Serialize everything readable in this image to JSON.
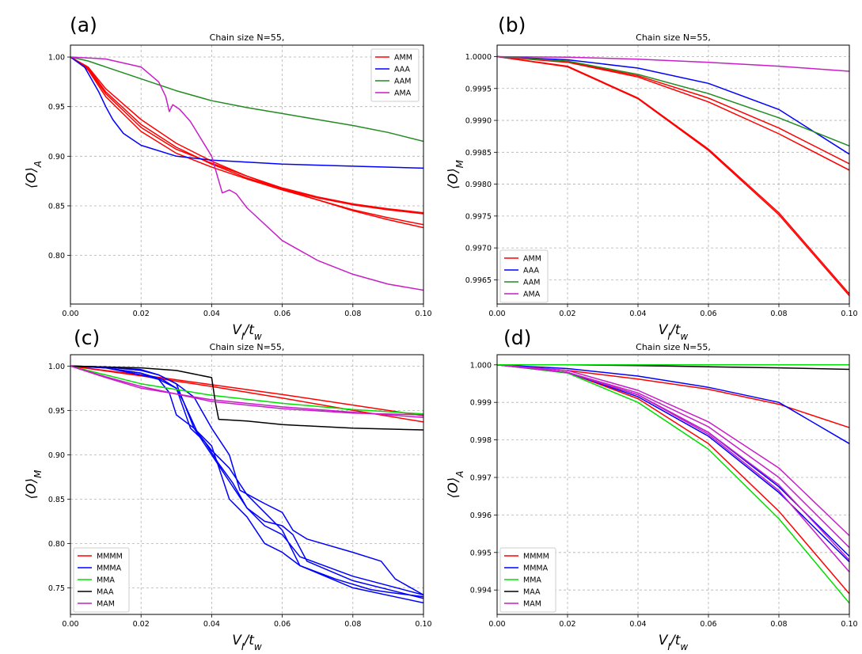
{
  "chart_data": [
    {
      "panel": "(a)",
      "type": "line",
      "title": "Chain size N=55,",
      "xlabel": "V_I/t_w",
      "ylabel": "⟨O⟩_A",
      "xlim": [
        0,
        0.1
      ],
      "ylim": [
        0.751,
        1.012
      ],
      "xticks": [
        "0.00",
        "0.02",
        "0.04",
        "0.06",
        "0.08",
        "0.10"
      ],
      "yticks": [
        "0.80",
        "0.85",
        "0.90",
        "0.95",
        "1.00"
      ],
      "legend_position": "top-right",
      "legend": [
        "AMM",
        "AAA",
        "AAM",
        "AMA"
      ],
      "series": [
        {
          "name": "AMM",
          "color": "#ff0000",
          "x": [
            0,
            0.005,
            0.01,
            0.02,
            0.03,
            0.04,
            0.05,
            0.06,
            0.07,
            0.08,
            0.09,
            0.1
          ],
          "y": [
            1.0,
            0.99,
            0.968,
            0.937,
            0.913,
            0.895,
            0.88,
            0.868,
            0.859,
            0.852,
            0.847,
            0.843
          ]
        },
        {
          "name": "AMM",
          "color": "#ff0000",
          "x": [
            0,
            0.005,
            0.01,
            0.02,
            0.03,
            0.04,
            0.05,
            0.06,
            0.07,
            0.08,
            0.09,
            0.1
          ],
          "y": [
            1.0,
            0.989,
            0.965,
            0.932,
            0.909,
            0.892,
            0.878,
            0.867,
            0.858,
            0.851,
            0.846,
            0.842
          ]
        },
        {
          "name": "AMM",
          "color": "#ff0000",
          "x": [
            0,
            0.005,
            0.01,
            0.02,
            0.03,
            0.04,
            0.05,
            0.06,
            0.07,
            0.08,
            0.09,
            0.1
          ],
          "y": [
            1.0,
            0.988,
            0.963,
            0.929,
            0.907,
            0.893,
            0.88,
            0.867,
            0.856,
            0.845,
            0.836,
            0.828
          ]
        },
        {
          "name": "AMM",
          "color": "#ff0000",
          "x": [
            0,
            0.005,
            0.01,
            0.02,
            0.03,
            0.04,
            0.05,
            0.06,
            0.07,
            0.08,
            0.09,
            0.1
          ],
          "y": [
            1.0,
            0.987,
            0.96,
            0.925,
            0.903,
            0.889,
            0.877,
            0.866,
            0.856,
            0.846,
            0.838,
            0.831
          ]
        },
        {
          "name": "AAA",
          "color": "#0000ff",
          "x": [
            0,
            0.004,
            0.008,
            0.01,
            0.012,
            0.015,
            0.02,
            0.03,
            0.04,
            0.06,
            0.08,
            0.1
          ],
          "y": [
            1.0,
            0.99,
            0.965,
            0.95,
            0.937,
            0.923,
            0.911,
            0.9,
            0.896,
            0.892,
            0.89,
            0.888
          ]
        },
        {
          "name": "AAM",
          "color": "#228b22",
          "x": [
            0,
            0.005,
            0.01,
            0.02,
            0.03,
            0.04,
            0.05,
            0.06,
            0.07,
            0.08,
            0.09,
            0.1
          ],
          "y": [
            1.0,
            0.996,
            0.99,
            0.978,
            0.966,
            0.956,
            0.949,
            0.943,
            0.937,
            0.931,
            0.924,
            0.915
          ]
        },
        {
          "name": "AMA",
          "color": "#c71ec7",
          "x": [
            0,
            0.01,
            0.02,
            0.025,
            0.027,
            0.028,
            0.029,
            0.031,
            0.034,
            0.04,
            0.043,
            0.045,
            0.047,
            0.05,
            0.06,
            0.07,
            0.08,
            0.09,
            0.1
          ],
          "y": [
            1.0,
            0.998,
            0.99,
            0.975,
            0.96,
            0.945,
            0.952,
            0.947,
            0.935,
            0.9,
            0.863,
            0.866,
            0.862,
            0.848,
            0.815,
            0.795,
            0.781,
            0.771,
            0.765
          ]
        }
      ]
    },
    {
      "panel": "(b)",
      "type": "line",
      "title": "Chain size N=55,",
      "xlabel": "V_I/t_w",
      "ylabel": "⟨O⟩_M",
      "xlim": [
        0,
        0.1
      ],
      "ylim": [
        0.99612,
        1.00018
      ],
      "xticks": [
        "0.00",
        "0.02",
        "0.04",
        "0.06",
        "0.08",
        "0.10"
      ],
      "yticks": [
        "0.9965",
        "0.9970",
        "0.9975",
        "0.9980",
        "0.9985",
        "0.9990",
        "0.9995",
        "1.0000"
      ],
      "legend_position": "bottom-left",
      "legend": [
        "AMM",
        "AAA",
        "AAM",
        "AMA"
      ],
      "series": [
        {
          "name": "AMM",
          "color": "#ff0000",
          "x": [
            0,
            0.02,
            0.04,
            0.06,
            0.08,
            0.1
          ],
          "y": [
            1.0,
            0.99985,
            0.99935,
            0.99855,
            0.99755,
            0.99628
          ]
        },
        {
          "name": "AMM",
          "color": "#ff0000",
          "x": [
            0,
            0.02,
            0.04,
            0.06,
            0.08,
            0.1
          ],
          "y": [
            1.0,
            0.99984,
            0.99934,
            0.99853,
            0.99752,
            0.99625
          ]
        },
        {
          "name": "AMM",
          "color": "#ff0000",
          "x": [
            0,
            0.02,
            0.04,
            0.06,
            0.08,
            0.1
          ],
          "y": [
            1.0,
            0.99992,
            0.9997,
            0.99935,
            0.99888,
            0.99832
          ]
        },
        {
          "name": "AMM",
          "color": "#ff0000",
          "x": [
            0,
            0.02,
            0.04,
            0.06,
            0.08,
            0.1
          ],
          "y": [
            1.0,
            0.99991,
            0.99968,
            0.99929,
            0.99879,
            0.99822
          ]
        },
        {
          "name": "AAA",
          "color": "#0000ff",
          "x": [
            0,
            0.02,
            0.04,
            0.06,
            0.08,
            0.1
          ],
          "y": [
            1.0,
            0.99995,
            0.99982,
            0.99958,
            0.99917,
            0.99847
          ]
        },
        {
          "name": "AAM",
          "color": "#228b22",
          "x": [
            0,
            0.02,
            0.04,
            0.06,
            0.08,
            0.1
          ],
          "y": [
            1.0,
            0.99993,
            0.99972,
            0.99942,
            0.99904,
            0.9986
          ]
        },
        {
          "name": "AMA",
          "color": "#c71ec7",
          "x": [
            0,
            0.02,
            0.04,
            0.06,
            0.08,
            0.1
          ],
          "y": [
            1.0,
            0.99999,
            0.99996,
            0.99991,
            0.99985,
            0.99977
          ]
        }
      ]
    },
    {
      "panel": "(c)",
      "type": "line",
      "title": "Chain size N=55,",
      "xlabel": "V_I/t_w",
      "ylabel": "⟨O⟩_M",
      "xlim": [
        0,
        0.1
      ],
      "ylim": [
        0.72,
        1.0128
      ],
      "xticks": [
        "0.00",
        "0.02",
        "0.04",
        "0.06",
        "0.08",
        "0.10"
      ],
      "yticks": [
        "0.75",
        "0.80",
        "0.85",
        "0.90",
        "0.95",
        "1.00"
      ],
      "legend_position": "bottom-left",
      "legend": [
        "MMMM",
        "MMMA",
        "MMA",
        "MAA",
        "MAM"
      ],
      "series": [
        {
          "name": "MMMM",
          "color": "#ff0000",
          "x": [
            0,
            0.02,
            0.04,
            0.06,
            0.08,
            0.1
          ],
          "y": [
            1.0,
            0.99,
            0.979,
            0.968,
            0.956,
            0.944
          ]
        },
        {
          "name": "MMMM",
          "color": "#ff0000",
          "x": [
            0,
            0.02,
            0.04,
            0.06,
            0.08,
            0.1
          ],
          "y": [
            1.0,
            0.989,
            0.977,
            0.964,
            0.95,
            0.937
          ]
        },
        {
          "name": "MMMA",
          "color": "#0000ff",
          "x": [
            0,
            0.01,
            0.02,
            0.025,
            0.028,
            0.03,
            0.035,
            0.04,
            0.045,
            0.05,
            0.055,
            0.06,
            0.065,
            0.08,
            0.1
          ],
          "y": [
            1.0,
            0.998,
            0.99,
            0.985,
            0.97,
            0.945,
            0.93,
            0.9,
            0.87,
            0.84,
            0.82,
            0.81,
            0.785,
            0.763,
            0.742
          ]
        },
        {
          "name": "MMMA",
          "color": "#0000ff",
          "x": [
            0,
            0.01,
            0.02,
            0.025,
            0.03,
            0.032,
            0.036,
            0.04,
            0.045,
            0.05,
            0.055,
            0.06,
            0.065,
            0.08,
            0.1
          ],
          "y": [
            1.0,
            0.998,
            0.992,
            0.985,
            0.975,
            0.96,
            0.925,
            0.905,
            0.885,
            0.855,
            0.835,
            0.815,
            0.775,
            0.75,
            0.733
          ]
        },
        {
          "name": "MMMA",
          "color": "#0000ff",
          "x": [
            0,
            0.01,
            0.02,
            0.026,
            0.03,
            0.034,
            0.038,
            0.042,
            0.046,
            0.05,
            0.055,
            0.06,
            0.063,
            0.067,
            0.08,
            0.1
          ],
          "y": [
            1.0,
            0.998,
            0.992,
            0.985,
            0.975,
            0.93,
            0.915,
            0.89,
            0.868,
            0.84,
            0.825,
            0.82,
            0.81,
            0.78,
            0.758,
            0.738
          ]
        },
        {
          "name": "MMMA",
          "color": "#0000ff",
          "x": [
            0,
            0.01,
            0.02,
            0.025,
            0.03,
            0.035,
            0.04,
            0.045,
            0.05,
            0.055,
            0.06,
            0.065,
            0.075,
            0.085,
            0.09,
            0.1
          ],
          "y": [
            1.0,
            0.999,
            0.995,
            0.99,
            0.98,
            0.93,
            0.91,
            0.85,
            0.83,
            0.8,
            0.79,
            0.775,
            0.76,
            0.748,
            0.745,
            0.74
          ]
        },
        {
          "name": "MMMA",
          "color": "#0000ff",
          "x": [
            0,
            0.01,
            0.02,
            0.025,
            0.03,
            0.035,
            0.04,
            0.045,
            0.048,
            0.055,
            0.06,
            0.063,
            0.067,
            0.08,
            0.088,
            0.092,
            0.1
          ],
          "y": [
            1.0,
            0.999,
            0.996,
            0.99,
            0.98,
            0.965,
            0.93,
            0.9,
            0.86,
            0.845,
            0.835,
            0.815,
            0.805,
            0.79,
            0.78,
            0.76,
            0.742
          ]
        },
        {
          "name": "MMA",
          "color": "#00e000",
          "x": [
            0,
            0.01,
            0.02,
            0.04,
            0.06,
            0.08,
            0.1
          ],
          "y": [
            1.0,
            0.99,
            0.98,
            0.967,
            0.958,
            0.951,
            0.946
          ]
        },
        {
          "name": "MAA",
          "color": "#000000",
          "x": [
            0,
            0.01,
            0.02,
            0.03,
            0.035,
            0.04,
            0.041,
            0.042,
            0.05,
            0.06,
            0.08,
            0.1
          ],
          "y": [
            1.0,
            0.999,
            0.998,
            0.995,
            0.991,
            0.987,
            0.96,
            0.94,
            0.938,
            0.934,
            0.93,
            0.928
          ]
        },
        {
          "name": "MAM",
          "color": "#c71ec7",
          "x": [
            0,
            0.01,
            0.02,
            0.04,
            0.06,
            0.08,
            0.1
          ],
          "y": [
            1.0,
            0.987,
            0.975,
            0.962,
            0.954,
            0.948,
            0.942
          ]
        },
        {
          "name": "MAM",
          "color": "#c71ec7",
          "x": [
            0,
            0.01,
            0.02,
            0.04,
            0.06,
            0.08,
            0.1
          ],
          "y": [
            1.0,
            0.988,
            0.977,
            0.96,
            0.952,
            0.947,
            0.945
          ]
        }
      ]
    },
    {
      "panel": "(d)",
      "type": "line",
      "title": "Chain size N=55,",
      "xlabel": "V_I/t_w",
      "ylabel": "⟨O⟩_A",
      "xlim": [
        0,
        0.1
      ],
      "ylim": [
        0.99335,
        1.00027
      ],
      "xticks": [
        "0.00",
        "0.02",
        "0.04",
        "0.06",
        "0.08",
        "0.10"
      ],
      "yticks": [
        "0.994",
        "0.995",
        "0.996",
        "0.997",
        "0.998",
        "0.999",
        "1.000"
      ],
      "legend_position": "bottom-left",
      "legend": [
        "MMMM",
        "MMMA",
        "MMA",
        "MAA",
        "MAM"
      ],
      "series": [
        {
          "name": "MMMM",
          "color": "#ff0000",
          "x": [
            0,
            0.02,
            0.04,
            0.06,
            0.08,
            0.1
          ],
          "y": [
            1.0,
            0.99985,
            0.99962,
            0.99935,
            0.99895,
            0.99833
          ]
        },
        {
          "name": "MMMA",
          "color": "#0000ff",
          "x": [
            0,
            0.02,
            0.04,
            0.06,
            0.08,
            0.1
          ],
          "y": [
            1.0,
            0.9999,
            0.9997,
            0.9994,
            0.999,
            0.9979
          ]
        },
        {
          "name": "MMMM",
          "color": "#ff0000",
          "x": [
            0,
            0.02,
            0.04,
            0.06,
            0.08,
            0.1
          ],
          "y": [
            1.0,
            0.9998,
            0.9991,
            0.9979,
            0.9961,
            0.9939
          ]
        },
        {
          "name": "MMA",
          "color": "#00e000",
          "x": [
            0,
            0.02,
            0.04,
            0.06,
            0.08,
            0.1
          ],
          "y": [
            1.0,
            0.99978,
            0.999,
            0.99775,
            0.9959,
            0.99365
          ]
        },
        {
          "name": "MMMA",
          "color": "#0000ff",
          "x": [
            0,
            0.02,
            0.04,
            0.06,
            0.08,
            0.1
          ],
          "y": [
            1.0,
            0.9998,
            0.99915,
            0.9981,
            0.9966,
            0.99475
          ]
        },
        {
          "name": "MMMA",
          "color": "#0000ff",
          "x": [
            0,
            0.02,
            0.04,
            0.06,
            0.08,
            0.1
          ],
          "y": [
            1.0,
            0.9998,
            0.9992,
            0.9982,
            0.99675,
            0.9949
          ]
        },
        {
          "name": "MAM",
          "color": "#c71ec7",
          "x": [
            0,
            0.02,
            0.04,
            0.06,
            0.08,
            0.1
          ],
          "y": [
            1.0,
            0.9998,
            0.9992,
            0.99815,
            0.99665,
            0.99448
          ]
        },
        {
          "name": "MAM",
          "color": "#c71ec7",
          "x": [
            0,
            0.02,
            0.04,
            0.06,
            0.08,
            0.1
          ],
          "y": [
            1.0,
            0.9998,
            0.99925,
            0.99835,
            0.997,
            0.99513
          ]
        },
        {
          "name": "MAM",
          "color": "#c71ec7",
          "x": [
            0,
            0.02,
            0.04,
            0.06,
            0.08,
            0.1
          ],
          "y": [
            1.0,
            0.99985,
            0.99932,
            0.99848,
            0.99725,
            0.99545
          ]
        },
        {
          "name": "MAM",
          "color": "#c71ec7",
          "x": [
            0,
            0.02,
            0.04,
            0.06,
            0.08,
            0.1
          ],
          "y": [
            1.0,
            0.9998,
            0.9992,
            0.9982,
            0.9968,
            0.9948
          ]
        },
        {
          "name": "MAA",
          "color": "#000000",
          "x": [
            0,
            0.02,
            0.04,
            0.06,
            0.08,
            0.1
          ],
          "y": [
            1.0,
            1.0,
            0.99998,
            0.99995,
            0.99992,
            0.99988
          ]
        },
        {
          "name": "MMA",
          "color": "#00e000",
          "x": [
            0,
            0.02,
            0.04,
            0.06,
            0.08,
            0.1
          ],
          "y": [
            1.0,
            1.0,
            1.0,
            1.0,
            1.0,
            1.0
          ]
        }
      ]
    }
  ],
  "colors": {
    "AMM": "#ff0000",
    "AAA": "#0000ff",
    "AAM": "#228b22",
    "AMA": "#c71ec7",
    "MMMM": "#ff0000",
    "MMMA": "#0000ff",
    "MMA": "#00e000",
    "MAA": "#000000",
    "MAM": "#c71ec7"
  }
}
